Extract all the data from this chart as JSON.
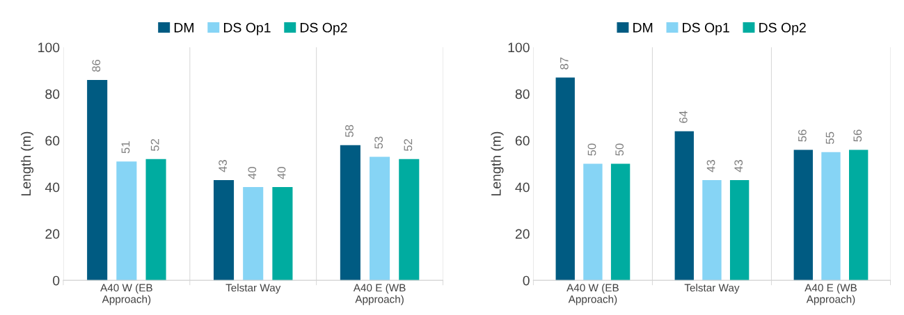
{
  "chart_data": [
    {
      "type": "bar",
      "ylabel": "Length (m)",
      "categories": [
        "A40 W (EB\nApproach)",
        "Telstar Way",
        "A40 E (WB\nApproach)"
      ],
      "series": [
        {
          "name": "DM",
          "color": "#005b82",
          "values": [
            86,
            43,
            58
          ]
        },
        {
          "name": "DS Op1",
          "color": "#86d4f5",
          "values": [
            51,
            40,
            53
          ]
        },
        {
          "name": "DS Op2",
          "color": "#00aca0",
          "values": [
            52,
            40,
            52
          ]
        }
      ],
      "ylim": [
        0,
        100
      ],
      "yticks": [
        0,
        20,
        40,
        60,
        80,
        100
      ],
      "data_labels": true,
      "legend": "top",
      "grid": "x"
    },
    {
      "type": "bar",
      "ylabel": "Length (m)",
      "categories": [
        "A40 W (EB\nApproach)",
        "Telstar Way",
        "A40 E (WB\nApproach)"
      ],
      "series": [
        {
          "name": "DM",
          "color": "#005b82",
          "values": [
            87,
            64,
            56
          ]
        },
        {
          "name": "DS Op1",
          "color": "#86d4f5",
          "values": [
            50,
            43,
            55
          ]
        },
        {
          "name": "DS Op2",
          "color": "#00aca0",
          "values": [
            50,
            43,
            56
          ]
        }
      ],
      "ylim": [
        0,
        100
      ],
      "yticks": [
        0,
        20,
        40,
        60,
        80,
        100
      ],
      "data_labels": true,
      "legend": "top",
      "grid": "x"
    }
  ]
}
